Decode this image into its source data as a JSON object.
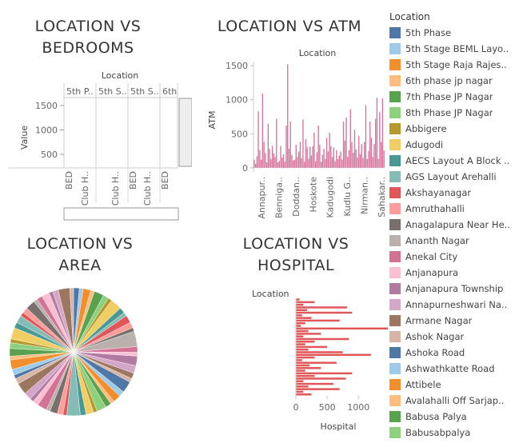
{
  "chart_data": [
    {
      "type": "table",
      "title": "LOCATION VS BEDROOMS",
      "column_header": "Location",
      "columns": [
        "5th P..",
        "5th S..",
        "5th S..",
        "6th"
      ],
      "ylabel": "Value",
      "yticks": [
        500,
        1000,
        1500
      ],
      "row_labels": [
        "BED",
        "Club H..",
        "Club H..",
        "BED",
        "Club H..",
        "BED"
      ]
    },
    {
      "type": "bar",
      "title": "LOCATION VS ATM",
      "xlabel": "Location",
      "ylabel": "ATM",
      "ylim": [
        -60,
        1560
      ],
      "yticks": [
        0,
        500,
        1000,
        1500
      ],
      "xtick_labels": [
        "Annapur..",
        "Benniga..",
        "Doddan..",
        "Hoskote",
        "Kadugodi",
        "Kudlu G..",
        "Nirman..",
        "Sahakar.."
      ],
      "color": "#d4739b",
      "values": [
        120,
        60,
        170,
        830,
        260,
        120,
        1090,
        380,
        220,
        80,
        650,
        280,
        130,
        320,
        210,
        160,
        720,
        80,
        100,
        320,
        150,
        200,
        90,
        620,
        1520,
        280,
        680,
        190,
        110,
        120,
        340,
        160,
        240,
        380,
        140,
        710,
        90,
        420,
        300,
        130,
        310,
        180,
        320,
        520,
        100,
        230,
        620,
        340,
        90,
        190,
        280,
        130,
        440,
        240,
        520,
        320,
        160,
        300,
        100,
        260,
        130,
        180,
        240,
        120,
        680,
        400,
        740,
        160,
        260,
        860,
        380,
        220,
        560,
        270,
        150,
        470,
        200,
        350,
        140,
        380,
        920,
        130,
        250,
        680,
        440,
        160,
        350,
        720,
        1030,
        130,
        820,
        380,
        1020,
        260
      ]
    },
    {
      "type": "pie",
      "title": "LOCATION VS AREA",
      "colors": [
        "#4e79a7",
        "#a0cbe8",
        "#f28e2b",
        "#ffbe7d",
        "#59a14f",
        "#8cd17d",
        "#b6992d",
        "#f1ce63",
        "#499894",
        "#86bcb6",
        "#e15759",
        "#ff9d9a",
        "#79706e",
        "#bab0ac",
        "#d37295",
        "#fabfd2",
        "#b07aa1",
        "#d4a6c8",
        "#9d7660",
        "#d7b5a6"
      ],
      "values": [
        3,
        2,
        4,
        2,
        5,
        3,
        2,
        6,
        3,
        2,
        4,
        3,
        2,
        8,
        3,
        2,
        5,
        4,
        3,
        2,
        6,
        3,
        4,
        2,
        3,
        5,
        2,
        4,
        3,
        7,
        2,
        3,
        4,
        2,
        5,
        3,
        2,
        4,
        6,
        3,
        2,
        3,
        5,
        2,
        4,
        3,
        2,
        6,
        3,
        4,
        2,
        3,
        5,
        2,
        3,
        4,
        2,
        3,
        6,
        2
      ]
    },
    {
      "type": "bar",
      "orientation": "horizontal",
      "title": "LOCATION VS HOSPITAL",
      "xlabel": "Hospital",
      "ylabel": "Location",
      "xlim": [
        0,
        1560
      ],
      "xticks": [
        0,
        500,
        1000
      ],
      "color": "#e15759",
      "values": [
        60,
        300,
        120,
        820,
        180,
        900,
        100,
        250,
        700,
        150,
        80,
        1470,
        200,
        400,
        120,
        850,
        300,
        150,
        500,
        200,
        750,
        1200,
        300,
        100,
        650,
        220,
        400,
        150,
        900,
        300,
        800,
        120,
        600,
        200,
        700,
        120,
        250
      ]
    }
  ],
  "legend": {
    "title": "Location",
    "items": [
      {
        "label": "5th Phase",
        "color": "#4e79a7"
      },
      {
        "label": "5th Stage BEML Layo..",
        "color": "#a0cbe8"
      },
      {
        "label": "5th Stage Raja Rajes..",
        "color": "#f28e2b"
      },
      {
        "label": "6th phase jp nagar",
        "color": "#ffbe7d"
      },
      {
        "label": "7th Phase JP Nagar",
        "color": "#59a14f"
      },
      {
        "label": "8th Phase JP Nagar",
        "color": "#8cd17d"
      },
      {
        "label": "Abbigere",
        "color": "#b6992d"
      },
      {
        "label": "Adugodi",
        "color": "#f1ce63"
      },
      {
        "label": "AECS Layout A Block ..",
        "color": "#499894"
      },
      {
        "label": "AGS Layout Arehalli",
        "color": "#86bcb6"
      },
      {
        "label": "Akshayanagar",
        "color": "#e15759"
      },
      {
        "label": "Amruthahalli",
        "color": "#ff9d9a"
      },
      {
        "label": "Anagalapura Near He..",
        "color": "#79706e"
      },
      {
        "label": "Ananth Nagar",
        "color": "#bab0ac"
      },
      {
        "label": "Anekal City",
        "color": "#d37295"
      },
      {
        "label": "Anjanapura",
        "color": "#fabfd2"
      },
      {
        "label": "Anjanapura Township",
        "color": "#b07aa1"
      },
      {
        "label": "Annapurneshwari Na..",
        "color": "#d4a6c8"
      },
      {
        "label": "Armane Nagar",
        "color": "#9d7660"
      },
      {
        "label": "Ashok Nagar",
        "color": "#d7b5a6"
      },
      {
        "label": "Ashoka Road",
        "color": "#4e79a7"
      },
      {
        "label": "Ashwathkatte Road",
        "color": "#a0cbe8"
      },
      {
        "label": "Attibele",
        "color": "#f28e2b"
      },
      {
        "label": "Avalahalli Off Sarjap..",
        "color": "#ffbe7d"
      },
      {
        "label": "Babusa Palya",
        "color": "#59a14f"
      },
      {
        "label": "Babusabpalya",
        "color": "#8cd17d"
      }
    ]
  }
}
